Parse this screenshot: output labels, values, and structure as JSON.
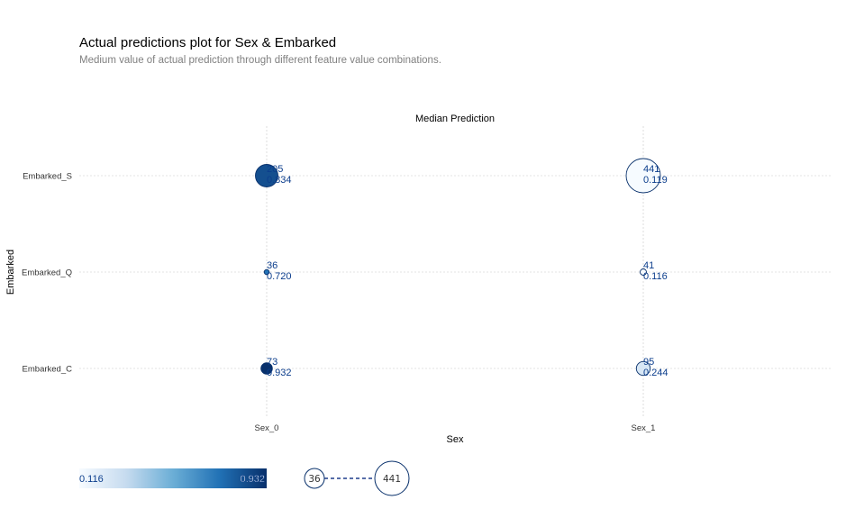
{
  "chart_data": {
    "type": "scatter",
    "title": "Actual predictions plot for Sex & Embarked",
    "subtitle": "Medium value of actual prediction through different feature value combinations.",
    "plot_title": "Median Prediction",
    "xlabel": "Sex",
    "ylabel": "Embarked",
    "x_categories": [
      "Sex_0",
      "Sex_1"
    ],
    "y_categories": [
      "Embarked_C",
      "Embarked_Q",
      "Embarked_S"
    ],
    "points": [
      {
        "x": "Sex_0",
        "y": "Embarked_S",
        "count": 205,
        "value": "0.834"
      },
      {
        "x": "Sex_1",
        "y": "Embarked_S",
        "count": 441,
        "value": "0.119"
      },
      {
        "x": "Sex_0",
        "y": "Embarked_Q",
        "count": 36,
        "value": "0.720"
      },
      {
        "x": "Sex_1",
        "y": "Embarked_Q",
        "count": 41,
        "value": "0.116"
      },
      {
        "x": "Sex_0",
        "y": "Embarked_C",
        "count": 73,
        "value": "0.932"
      },
      {
        "x": "Sex_1",
        "y": "Embarked_C",
        "count": 95,
        "value": "0.244"
      }
    ],
    "colorbar": {
      "min": "0.116",
      "max": "0.932",
      "colormap": "Blues"
    },
    "size_legend": {
      "min": "36",
      "max": "441"
    },
    "grid": true,
    "colors": {
      "light": "#f7fbff",
      "dark": "#08306b",
      "edge": "#08306b",
      "grid": "#c8c8c8"
    }
  }
}
